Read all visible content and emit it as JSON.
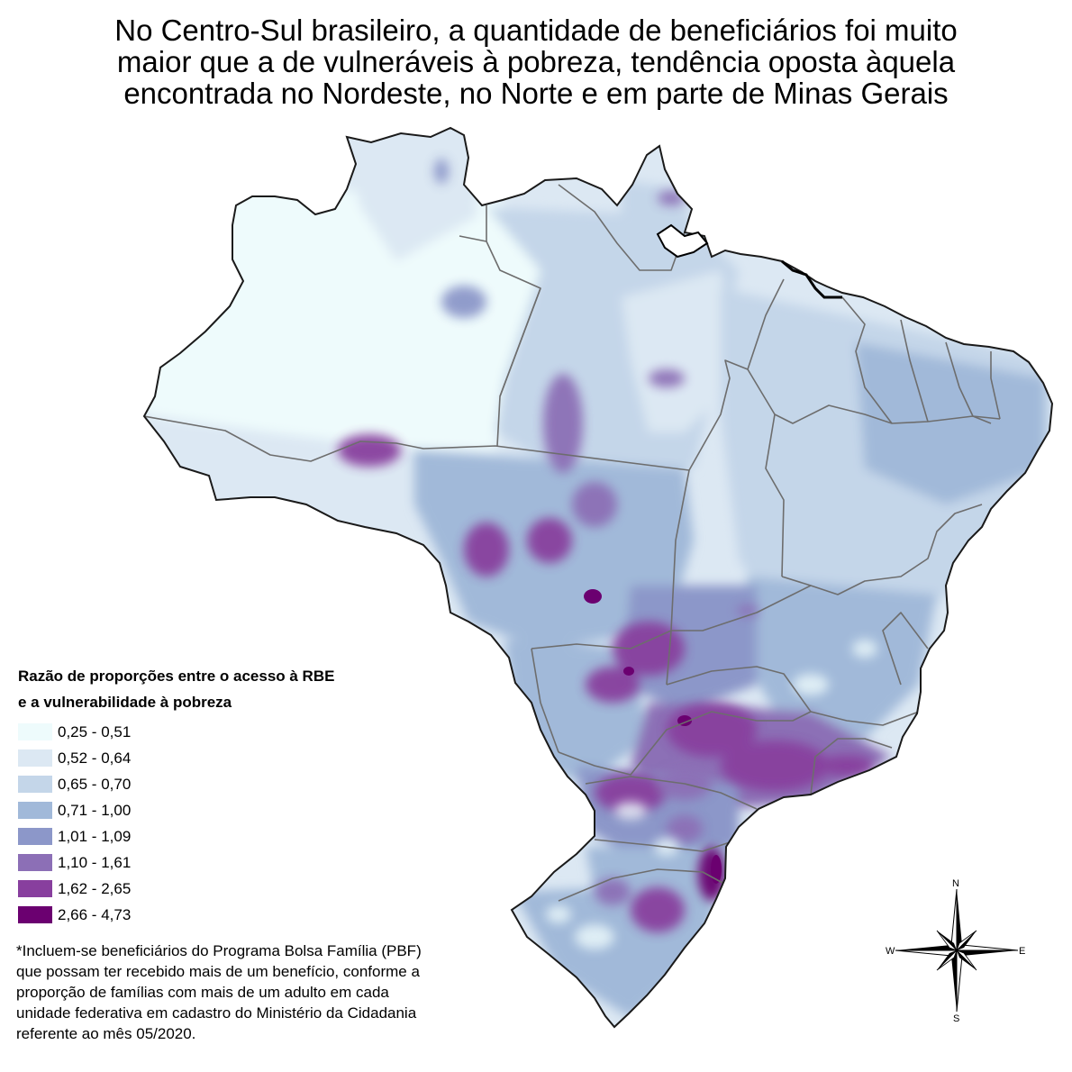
{
  "title": {
    "line1": "No Centro-Sul brasileiro, a quantidade de beneficiários foi muito",
    "line2": "maior que a de vulneráveis à pobreza, tendência oposta àquela",
    "line3": "encontrada no Nordeste, no Norte e em parte de Minas Gerais"
  },
  "legend": {
    "title_line1": "Razão de proporções entre o acesso à RBE",
    "title_line2": "e a vulnerabilidade à pobreza",
    "classes": [
      {
        "label": "0,25 - 0,51",
        "color": "#eefbfc"
      },
      {
        "label": "0,52 - 0,64",
        "color": "#dce8f3"
      },
      {
        "label": "0,65 - 0,70",
        "color": "#c4d6e9"
      },
      {
        "label": "0,71 - 1,00",
        "color": "#a1b9d9"
      },
      {
        "label": "1,01 - 1,09",
        "color": "#8c97c9"
      },
      {
        "label": "1,10 - 1,61",
        "color": "#8c6fb6"
      },
      {
        "label": "1,62 - 2,65",
        "color": "#883f9e"
      },
      {
        "label": "2,66 - 4,73",
        "color": "#6b0070"
      }
    ]
  },
  "footnote": {
    "line1": "*Incluem-se beneficiários do Programa Bolsa Família (PBF)",
    "line2": "que possam ter recebido mais de um benefício, conforme a",
    "line3": "proporção de famílias com mais de um adulto em cada",
    "line4": "unidade federativa em cadastro do Ministério da Cidadania",
    "line5": "referente ao mês 05/2020."
  },
  "compass": {
    "n": "N",
    "s": "S",
    "e": "E",
    "w": "W",
    "icon": "compass-rose-icon"
  }
}
